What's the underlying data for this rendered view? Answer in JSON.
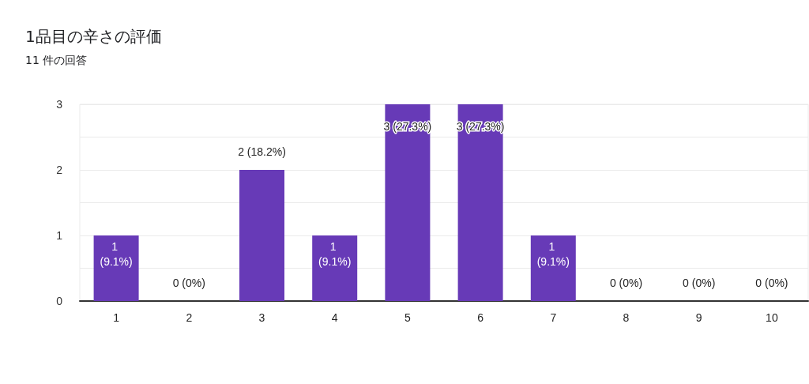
{
  "chart_data": {
    "type": "bar",
    "title": "1品目の辛さの評価",
    "subtitle": "11 件の回答",
    "categories": [
      "1",
      "2",
      "3",
      "4",
      "5",
      "6",
      "7",
      "8",
      "9",
      "10"
    ],
    "values": [
      1,
      0,
      2,
      1,
      3,
      3,
      1,
      0,
      0,
      0
    ],
    "value_labels": [
      "1 (9.1%)",
      "0 (0%)",
      "2 (18.2%)",
      "1 (9.1%)",
      "3 (27.3%)",
      "3 (27.3%)",
      "1 (9.1%)",
      "0 (0%)",
      "0 (0%)",
      "0 (0%)"
    ],
    "color": "#673ab7",
    "ylim": [
      0,
      3
    ],
    "yticks": [
      0,
      {
        "value": 0.5,
        "label": null
      },
      1,
      {
        "value": 1.5,
        "label": null
      },
      2,
      {
        "value": 2.5,
        "label": null
      },
      3
    ],
    "grid": "y"
  }
}
